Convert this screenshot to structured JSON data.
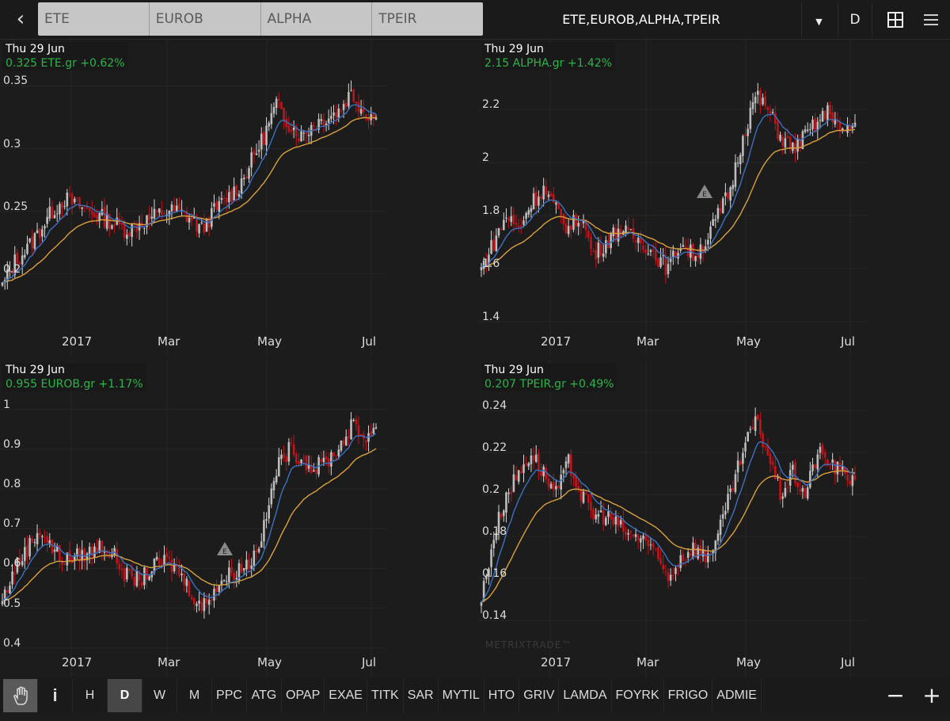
{
  "topbar": {
    "back_icon": "chevron-left-icon",
    "tabs": [
      "ETE",
      "EUROB",
      "ALPHA",
      "TPEIR"
    ],
    "title": "ETE,EUROB,ALPHA,TPEIR",
    "dropdown_icon": "caret-down-icon",
    "period": "D",
    "layout_icon": "grid-icon",
    "menu_icon": "hamburger-icon"
  },
  "colors": {
    "up": "#d8d8d8",
    "down": "#c0141b",
    "ma_short": "#3a72c0",
    "ma_long": "#d9a040",
    "quote": "#2fb34a",
    "background": "#1c1c1c"
  },
  "x_axis_labels": [
    "2017",
    "Mar",
    "May",
    "Jul"
  ],
  "watermark": "METRIXTRADE™",
  "chart_data": [
    {
      "type": "candlestick",
      "symbol": "ETE.gr",
      "date": "Thu 29 Jun",
      "quote": "0.325 ETE.gr +0.62%",
      "ylim": [
        0.134,
        0.387
      ],
      "yticks": [
        "0.2",
        "0.25",
        "0.3",
        "0.35"
      ],
      "x_range": [
        "2016-11-22",
        "2017-06-29"
      ],
      "weekly_close": [
        0.19,
        0.21,
        0.22,
        0.235,
        0.25,
        0.26,
        0.255,
        0.25,
        0.245,
        0.24,
        0.235,
        0.24,
        0.245,
        0.25,
        0.25,
        0.245,
        0.235,
        0.25,
        0.26,
        0.27,
        0.29,
        0.31,
        0.335,
        0.32,
        0.31,
        0.32,
        0.325,
        0.33,
        0.345,
        0.33,
        0.325
      ]
    },
    {
      "type": "candlestick",
      "symbol": "ALPHA.gr",
      "date": "Thu 29 Jun",
      "quote": "2.15 ALPHA.gr +1.42%",
      "ylim": [
        1.269,
        2.463
      ],
      "yticks": [
        "1.4",
        "1.6",
        "1.8",
        "2",
        "2.2"
      ],
      "x_range": [
        "2016-11-22",
        "2017-06-29"
      ],
      "marker": "E",
      "weekly_close": [
        1.6,
        1.7,
        1.8,
        1.75,
        1.85,
        1.9,
        1.82,
        1.75,
        1.8,
        1.65,
        1.7,
        1.75,
        1.72,
        1.7,
        1.65,
        1.6,
        1.7,
        1.65,
        1.7,
        1.8,
        1.9,
        2.1,
        2.25,
        2.2,
        2.1,
        2.05,
        2.1,
        2.15,
        2.2,
        2.1,
        2.15
      ]
    },
    {
      "type": "candlestick",
      "symbol": "EUROB.gr",
      "date": "Thu 29 Jun",
      "quote": "0.955 EUROB.gr +1.17%",
      "ylim": [
        0.326,
        1.123
      ],
      "yticks": [
        "0.4",
        "0.5",
        "0.6",
        "0.7",
        "0.8",
        "0.9",
        "1"
      ],
      "x_range": [
        "2016-11-22",
        "2017-06-29"
      ],
      "marker": "E",
      "weekly_close": [
        0.52,
        0.6,
        0.65,
        0.7,
        0.65,
        0.62,
        0.63,
        0.64,
        0.66,
        0.63,
        0.58,
        0.57,
        0.6,
        0.62,
        0.6,
        0.55,
        0.5,
        0.55,
        0.58,
        0.6,
        0.62,
        0.7,
        0.85,
        0.9,
        0.88,
        0.85,
        0.87,
        0.9,
        0.96,
        0.93,
        0.955
      ]
    },
    {
      "type": "candlestick",
      "symbol": "TPEIR.gr",
      "date": "Thu 29 Jun",
      "quote": "0.207 TPEIR.gr +0.49%",
      "ylim": [
        0.1128,
        0.2638
      ],
      "yticks": [
        "0.14",
        "0.16",
        "0.18",
        "0.2",
        "0.22",
        "0.24"
      ],
      "x_range": [
        "2016-11-22",
        "2017-06-29"
      ],
      "weekly_close": [
        0.15,
        0.18,
        0.2,
        0.21,
        0.22,
        0.21,
        0.2,
        0.215,
        0.2,
        0.19,
        0.19,
        0.185,
        0.18,
        0.18,
        0.17,
        0.16,
        0.17,
        0.175,
        0.17,
        0.18,
        0.2,
        0.22,
        0.235,
        0.22,
        0.2,
        0.21,
        0.2,
        0.22,
        0.215,
        0.21,
        0.207
      ]
    }
  ],
  "bottombar": {
    "tools": [
      "hand-icon",
      "info-icon"
    ],
    "info_label": "i",
    "periods": [
      "H",
      "D",
      "W",
      "M"
    ],
    "active_period": "D",
    "symbols": [
      "PPC",
      "ATG",
      "OPAP",
      "EXAE",
      "TITK",
      "SAR",
      "MYTIL",
      "HTO",
      "GRIV",
      "LAMDA",
      "FOYRK",
      "FRIGO",
      "ADMIE"
    ],
    "zoom_out": "−",
    "zoom_in": "+"
  }
}
